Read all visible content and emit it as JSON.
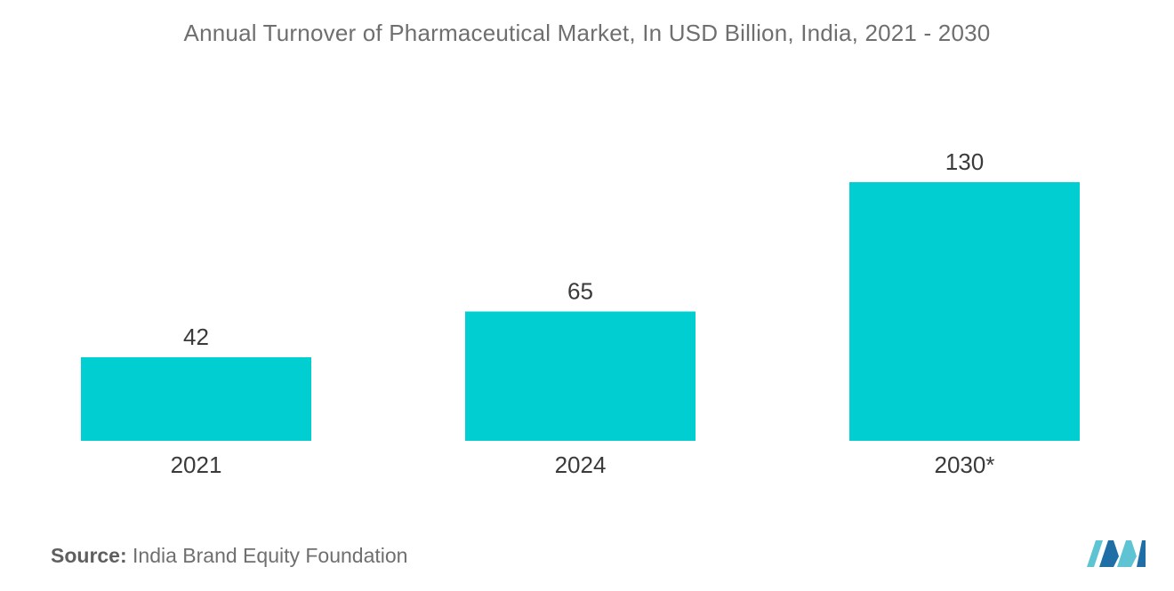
{
  "chart_data": {
    "type": "bar",
    "title": "Annual Turnover of Pharmaceutical Market, In USD Billion, India, 2021 - 2030",
    "categories": [
      "2021",
      "2024",
      "2030*"
    ],
    "values": [
      42,
      65,
      130
    ],
    "value_labels": [
      "42",
      "65",
      "130"
    ],
    "xlabel": "",
    "ylabel": "",
    "ylim": [
      0,
      130
    ],
    "grid": false,
    "legend": "none",
    "bar_color": "#00ced1"
  },
  "source": {
    "label": "Source:",
    "text": "India Brand Equity Foundation"
  },
  "logo": {
    "icon": "mordor-intelligence-logo",
    "colors": [
      "#5ec4d4",
      "#1f6fa6"
    ]
  }
}
